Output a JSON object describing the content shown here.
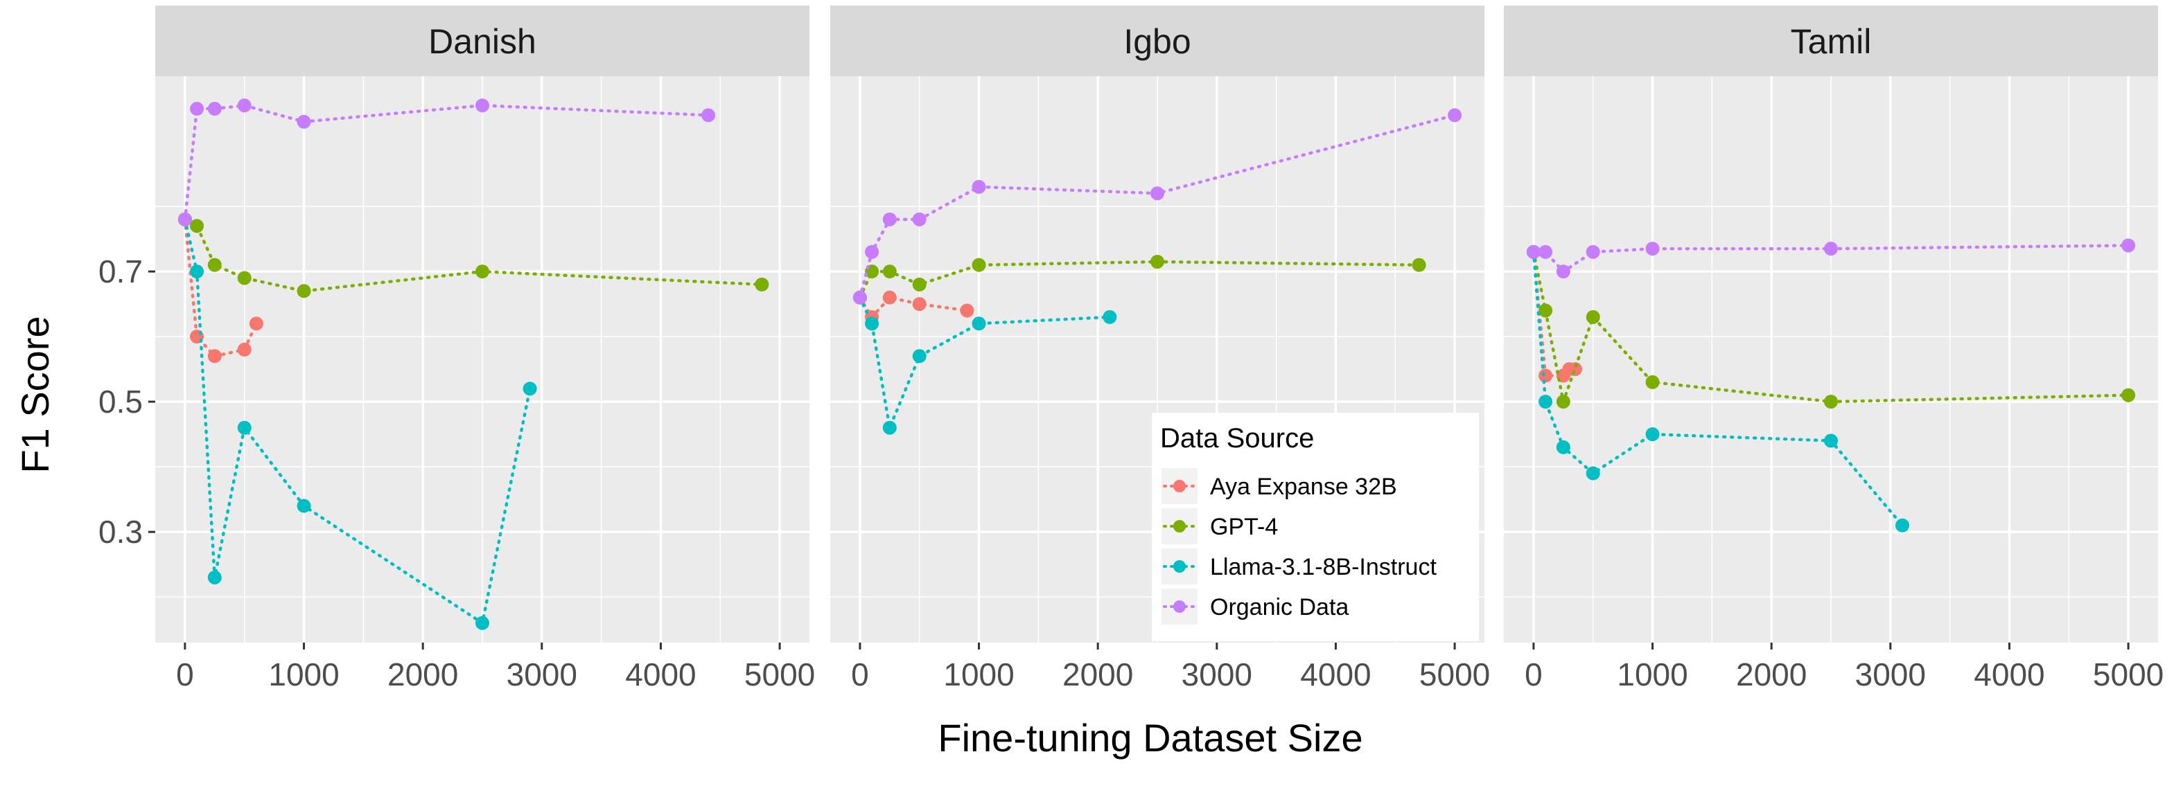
{
  "chart_data": {
    "type": "line",
    "layout": "faceted",
    "ylabel": "F1 Score",
    "xlabel": "Fine-tuning Dataset Size",
    "xlim": [
      -250,
      5250
    ],
    "ylim": [
      0.13,
      1.0
    ],
    "xticks": [
      0,
      1000,
      2000,
      3000,
      4000,
      5000
    ],
    "yticks": [
      0.3,
      0.5,
      0.7
    ],
    "ytick_labels": [
      "0.3",
      "0.5",
      "0.7"
    ],
    "legend": {
      "title": "Data Source",
      "position": "inside-bottom-right-of-middle-panel"
    },
    "series_colors": {
      "Aya Expanse 32B": "#F8766D",
      "GPT-4": "#7CAE00",
      "Llama-3.1-8B-Instruct": "#00BFC4",
      "Organic Data": "#C77CFF"
    },
    "panels": [
      {
        "title": "Danish",
        "series": [
          {
            "name": "Aya Expanse 32B",
            "x": [
              0,
              100,
              250,
              500,
              600
            ],
            "y": [
              0.78,
              0.6,
              0.57,
              0.58,
              0.62
            ]
          },
          {
            "name": "GPT-4",
            "x": [
              0,
              100,
              250,
              500,
              1000,
              2500,
              4850
            ],
            "y": [
              0.78,
              0.77,
              0.71,
              0.69,
              0.67,
              0.7,
              0.68
            ]
          },
          {
            "name": "Llama-3.1-8B-Instruct",
            "x": [
              0,
              100,
              250,
              500,
              1000,
              2500,
              2900
            ],
            "y": [
              0.78,
              0.7,
              0.23,
              0.46,
              0.34,
              0.16,
              0.52
            ]
          },
          {
            "name": "Organic Data",
            "x": [
              0,
              100,
              250,
              500,
              1000,
              2500,
              4400
            ],
            "y": [
              0.78,
              0.95,
              0.95,
              0.955,
              0.93,
              0.955,
              0.94
            ]
          }
        ]
      },
      {
        "title": "Igbo",
        "series": [
          {
            "name": "Aya Expanse 32B",
            "x": [
              0,
              100,
              250,
              500,
              900
            ],
            "y": [
              0.66,
              0.63,
              0.66,
              0.65,
              0.64
            ]
          },
          {
            "name": "GPT-4",
            "x": [
              0,
              100,
              250,
              500,
              1000,
              2500,
              4700
            ],
            "y": [
              0.66,
              0.7,
              0.7,
              0.68,
              0.71,
              0.715,
              0.71
            ]
          },
          {
            "name": "Llama-3.1-8B-Instruct",
            "x": [
              0,
              100,
              250,
              500,
              1000,
              2100
            ],
            "y": [
              0.66,
              0.62,
              0.46,
              0.57,
              0.62,
              0.63
            ]
          },
          {
            "name": "Organic Data",
            "x": [
              0,
              100,
              250,
              500,
              1000,
              2500,
              5000
            ],
            "y": [
              0.66,
              0.73,
              0.78,
              0.78,
              0.83,
              0.82,
              0.94
            ]
          }
        ]
      },
      {
        "title": "Tamil",
        "series": [
          {
            "name": "Aya Expanse 32B",
            "x": [
              0,
              100,
              250,
              300,
              350
            ],
            "y": [
              0.73,
              0.54,
              0.54,
              0.55,
              0.55
            ]
          },
          {
            "name": "GPT-4",
            "x": [
              0,
              100,
              250,
              500,
              1000,
              2500,
              5000
            ],
            "y": [
              0.73,
              0.64,
              0.5,
              0.63,
              0.53,
              0.5,
              0.51
            ]
          },
          {
            "name": "Llama-3.1-8B-Instruct",
            "x": [
              0,
              100,
              250,
              500,
              1000,
              2500,
              3100
            ],
            "y": [
              0.73,
              0.5,
              0.43,
              0.39,
              0.45,
              0.44,
              0.31
            ]
          },
          {
            "name": "Organic Data",
            "x": [
              0,
              100,
              250,
              500,
              1000,
              2500,
              5000
            ],
            "y": [
              0.73,
              0.73,
              0.7,
              0.73,
              0.735,
              0.735,
              0.74
            ]
          }
        ]
      }
    ]
  }
}
